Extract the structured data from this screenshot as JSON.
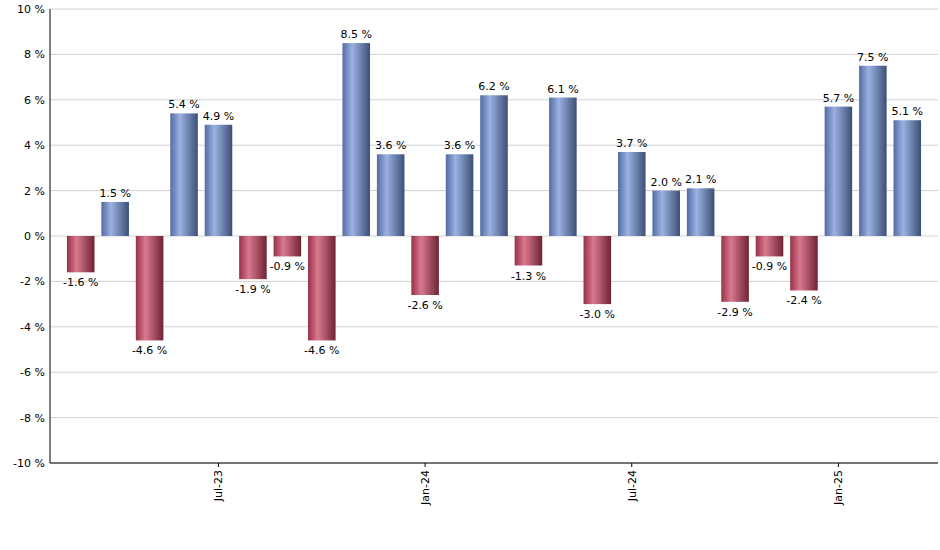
{
  "chart_data": {
    "type": "bar",
    "categories": [
      null,
      null,
      null,
      null,
      "Jul-23",
      null,
      null,
      null,
      null,
      null,
      "Jan-24",
      null,
      null,
      null,
      null,
      null,
      "Jul-24",
      null,
      null,
      null,
      null,
      null,
      "Jan-25",
      null,
      null
    ],
    "values": [
      -1.6,
      1.5,
      -4.6,
      5.4,
      4.9,
      -1.9,
      -0.9,
      -4.6,
      8.5,
      3.6,
      -2.6,
      3.6,
      6.2,
      -1.3,
      6.1,
      -3.0,
      3.7,
      2.0,
      2.1,
      -2.9,
      -0.9,
      -2.4,
      5.7,
      7.5,
      5.1
    ],
    "value_labels": [
      "-1.6 %",
      "1.5 %",
      "-4.6 %",
      "5.4 %",
      "4.9 %",
      "-1.9 %",
      "-0.9 %",
      "-4.6 %",
      "8.5 %",
      "3.6 %",
      "-2.6 %",
      "3.6 %",
      "6.2 %",
      "-1.3 %",
      "6.1 %",
      "-3.0 %",
      "3.7 %",
      "2.0 %",
      "2.1 %",
      "-2.9 %",
      "-0.9 %",
      "-2.4 %",
      "5.7 %",
      "7.5 %",
      "5.1 %"
    ],
    "colors": [
      "#c9405f",
      "#6f8fd6",
      "#c9405f",
      "#6f8fd6",
      "#6f8fd6",
      "#c9405f",
      "#c9405f",
      "#c9405f",
      "#6f8fd6",
      "#6f8fd6",
      "#c9405f",
      "#6f8fd6",
      "#6f8fd6",
      "#c9405f",
      "#6f8fd6",
      "#c9405f",
      "#6f8fd6",
      "#6f8fd6",
      "#6f8fd6",
      "#c9405f",
      "#c9405f",
      "#c9405f",
      "#6f8fd6",
      "#6f8fd6",
      "#6f8fd6"
    ],
    "ylim": [
      -10,
      10
    ],
    "yticks": [
      {
        "value": -10,
        "label": "-10 %"
      },
      {
        "value": -8,
        "label": "-8 %"
      },
      {
        "value": -6,
        "label": "-6 %"
      },
      {
        "value": -4,
        "label": "-4 %"
      },
      {
        "value": -2,
        "label": "-2 %"
      },
      {
        "value": 0,
        "label": "0 %"
      },
      {
        "value": 2,
        "label": "2 %"
      },
      {
        "value": 4,
        "label": "4 %"
      },
      {
        "value": 6,
        "label": "6 %"
      },
      {
        "value": 8,
        "label": "8 %"
      },
      {
        "value": 10,
        "label": "10 %"
      }
    ],
    "grid": true,
    "data_labels": true
  }
}
